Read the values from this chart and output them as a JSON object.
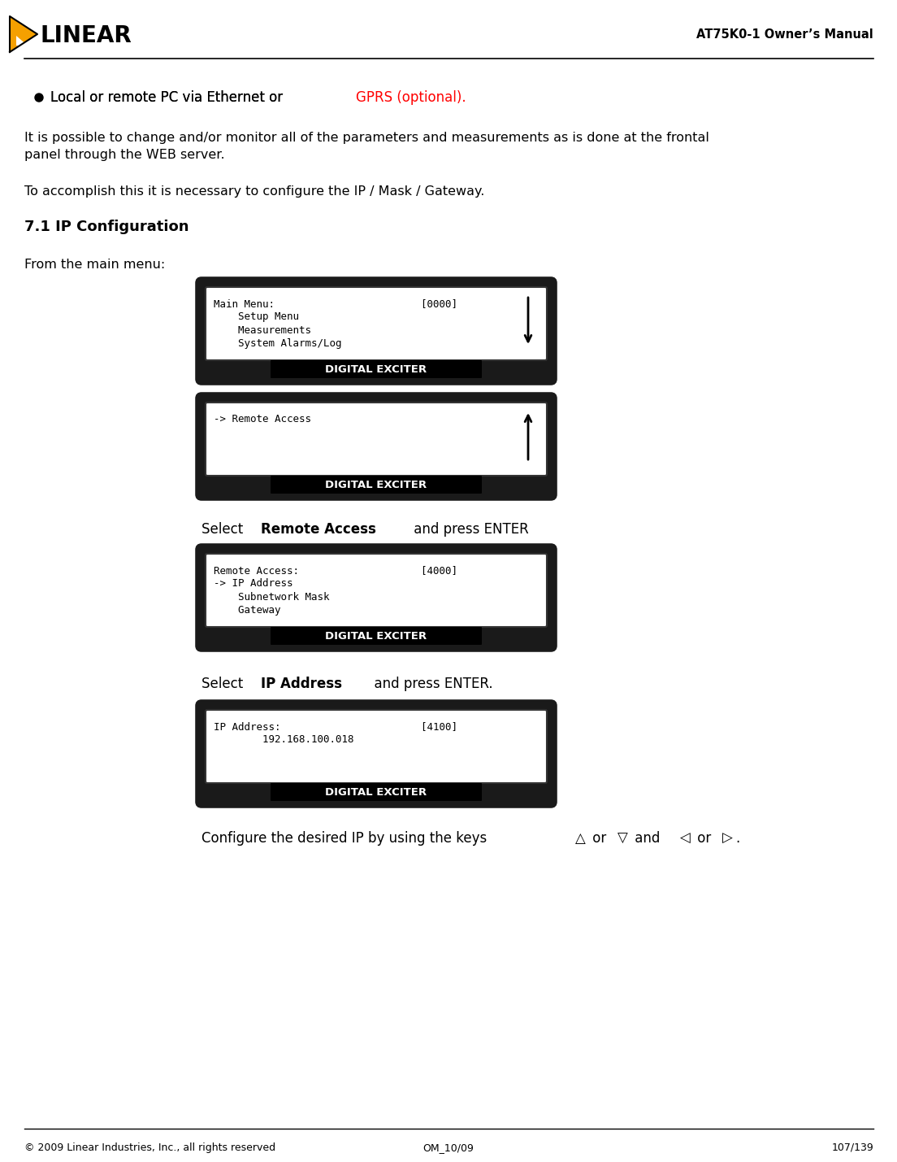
{
  "title": "AT75K0-1 Owner’s Manual",
  "footer_left": "© 2009 Linear Industries, Inc., all rights reserved",
  "footer_center": "OM_10/09",
  "footer_right": "107/139",
  "bullet_black": "Local or remote PC via Ethernet or ",
  "bullet_red": "GPRS (optional).",
  "body_text1_line1": "It is possible to change and/or monitor all of the parameters and measurements as is done at the frontal",
  "body_text1_line2": "panel through the WEB server.",
  "body_text2": "To accomplish this it is necessary to configure the IP / Mask / Gateway.",
  "section_title": "7.1 IP Configuration",
  "from_main_menu": "From the main menu:",
  "box1_lines": [
    "Main Menu:                        [0000]",
    "    Setup Menu",
    "    Measurements",
    "    System Alarms/Log"
  ],
  "box2_lines": [
    "-> Remote Access",
    "",
    "",
    ""
  ],
  "select1_normal1": "Select ",
  "select1_bold": "Remote Access",
  "select1_normal2": " and press ENTER",
  "box3_lines": [
    "Remote Access:                    [4000]",
    "-> IP Address",
    "    Subnetwork Mask",
    "    Gateway"
  ],
  "select2_normal1": "Select ",
  "select2_bold": "IP Address",
  "select2_normal2": "  and press ENTER.",
  "box4_lines": [
    "IP Address:                       [4100]",
    "        192.168.100.018",
    "",
    ""
  ],
  "configure_text_1": "Configure the desired IP by using the keys ",
  "configure_text_arrow1": "△",
  "configure_text_2": " or ",
  "configure_text_arrow2": "▽",
  "configure_text_3": " and  ",
  "configure_text_arrow3": "◁",
  "configure_text_4": " or ",
  "configure_text_arrow4": "▷",
  "configure_text_5": ".",
  "digital_exciter_label": "DIGITAL EXCITER",
  "bg_color": "#ffffff"
}
